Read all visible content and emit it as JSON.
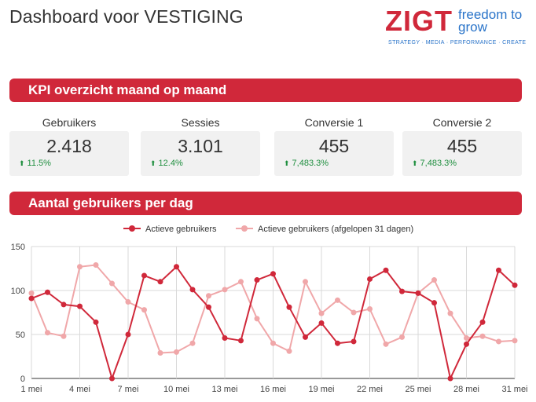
{
  "page_title": "Dashboard voor VESTIGING",
  "logo": {
    "word": "ZIGT",
    "slogan": "freedom to grow",
    "tagline": "STRATEGY · MEDIA · PERFORMANCE · CREATE"
  },
  "sections": {
    "kpi_title": "KPI overzicht maand op maand",
    "chart_title": "Aantal gebruikers per dag"
  },
  "kpis": [
    {
      "label": "Gebruikers",
      "value": "2.418",
      "delta": "11.5%",
      "trend": "up"
    },
    {
      "label": "Sessies",
      "value": "3.101",
      "delta": "12.4%",
      "trend": "up"
    },
    {
      "label": "Conversie 1",
      "value": "455",
      "delta": "7,483.3%",
      "trend": "up"
    },
    {
      "label": "Conversie 2",
      "value": "455",
      "delta": "7,483.3%",
      "trend": "up"
    }
  ],
  "colors": {
    "brand_red": "#d0283a",
    "brand_blue": "#2a74c9",
    "series_1": "#d0283a",
    "series_2": "#f0a7a9",
    "positive": "#1e8e3e"
  },
  "chart_data": {
    "type": "line",
    "x": [
      "1 mei",
      "2 mei",
      "3 mei",
      "4 mei",
      "5 mei",
      "6 mei",
      "7 mei",
      "8 mei",
      "9 mei",
      "10 mei",
      "11 mei",
      "12 mei",
      "13 mei",
      "14 mei",
      "15 mei",
      "16 mei",
      "17 mei",
      "18 mei",
      "19 mei",
      "20 mei",
      "21 mei",
      "22 mei",
      "23 mei",
      "24 mei",
      "25 mei",
      "26 mei",
      "27 mei",
      "28 mei",
      "29 mei",
      "30 mei",
      "31 mei"
    ],
    "xticks": [
      "1 mei",
      "4 mei",
      "7 mei",
      "10 mei",
      "13 mei",
      "16 mei",
      "19 mei",
      "22 mei",
      "25 mei",
      "28 mei",
      "31 mei"
    ],
    "yticks": [
      "0",
      "50",
      "100",
      "150"
    ],
    "ylim": [
      0,
      150
    ],
    "grid": true,
    "legend": "top-center",
    "series": [
      {
        "name": "Actieve gebruikers",
        "values": [
          91,
          98,
          84,
          82,
          64,
          0,
          50,
          117,
          110,
          127,
          101,
          81,
          46,
          43,
          112,
          119,
          81,
          47,
          63,
          40,
          42,
          113,
          123,
          99,
          97,
          86,
          0,
          39,
          64,
          123,
          106
        ]
      },
      {
        "name": "Actieve gebruikers (afgelopen 31 dagen)",
        "values": [
          97,
          52,
          48,
          127,
          129,
          108,
          87,
          78,
          29,
          30,
          40,
          94,
          101,
          110,
          68,
          40,
          31,
          110,
          74,
          89,
          75,
          79,
          39,
          47,
          97,
          112,
          74,
          46,
          48,
          42,
          43
        ]
      }
    ]
  }
}
